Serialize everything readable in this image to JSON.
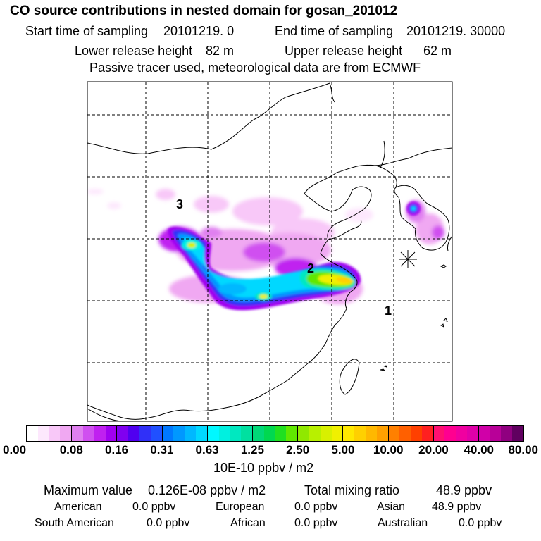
{
  "title": "CO  source contributions in nested domain for gosan_201012",
  "header": {
    "start_label": "Start time of sampling",
    "start_value": "20101219.      0",
    "end_label": "End time of sampling",
    "end_value": "20101219. 30000",
    "lower_label": "Lower release height",
    "lower_value": "82 m",
    "upper_label": "Upper release height",
    "upper_value": "62 m",
    "note": "Passive tracer used, meteorological data are from ECMWF"
  },
  "map": {
    "source_labels": [
      "1",
      "2",
      "3"
    ],
    "receptor_marker": "receptor-star-icon"
  },
  "colorbar": {
    "ticks": [
      "0.00",
      "0.08",
      "0.16",
      "0.31",
      "0.63",
      "1.25",
      "2.50",
      "5.00",
      "10.00",
      "20.00",
      "40.00",
      "80.00"
    ],
    "unit": "10E-10 ppbv / m2",
    "colors": [
      [
        "#ffffff",
        "#fde8fd",
        "#f8c8f8",
        "#f0a8f2"
      ],
      [
        "#e080f0",
        "#d050f0",
        "#c020f0",
        "#a000f0"
      ],
      [
        "#8000f0",
        "#5000f0",
        "#3030f8",
        "#2050ff"
      ],
      [
        "#0078ff",
        "#0098ff",
        "#00b8ff",
        "#00d8ff"
      ],
      [
        "#00f8ff",
        "#00f0e0",
        "#00e8c0",
        "#00e0a0"
      ],
      [
        "#00d878",
        "#00d850",
        "#20e020",
        "#60e800"
      ],
      [
        "#90e800",
        "#b8f000",
        "#d8f000",
        "#f0f000"
      ],
      [
        "#ffe800",
        "#ffd000",
        "#ffb800",
        "#ffa000"
      ],
      [
        "#ff8000",
        "#ff6000",
        "#ff4000",
        "#ff2020"
      ],
      [
        "#ff1070",
        "#ff0090",
        "#f000a0",
        "#e000a8"
      ],
      [
        "#d000a8",
        "#b80098",
        "#900080",
        "#600060"
      ]
    ]
  },
  "stats": {
    "max_label": "Maximum value",
    "max_value": "0.126E-08 ppbv / m2",
    "total_label": "Total mixing ratio",
    "total_value": "48.9 ppbv",
    "regions": [
      {
        "name": "American",
        "value": "0.0 ppbv"
      },
      {
        "name": "European",
        "value": "0.0 ppbv"
      },
      {
        "name": "Asian",
        "value": "48.9 ppbv"
      },
      {
        "name": "South American",
        "value": "0.0 ppbv"
      },
      {
        "name": "African",
        "value": "0.0 ppbv"
      },
      {
        "name": "Australian",
        "value": "0.0 ppbv"
      }
    ]
  }
}
